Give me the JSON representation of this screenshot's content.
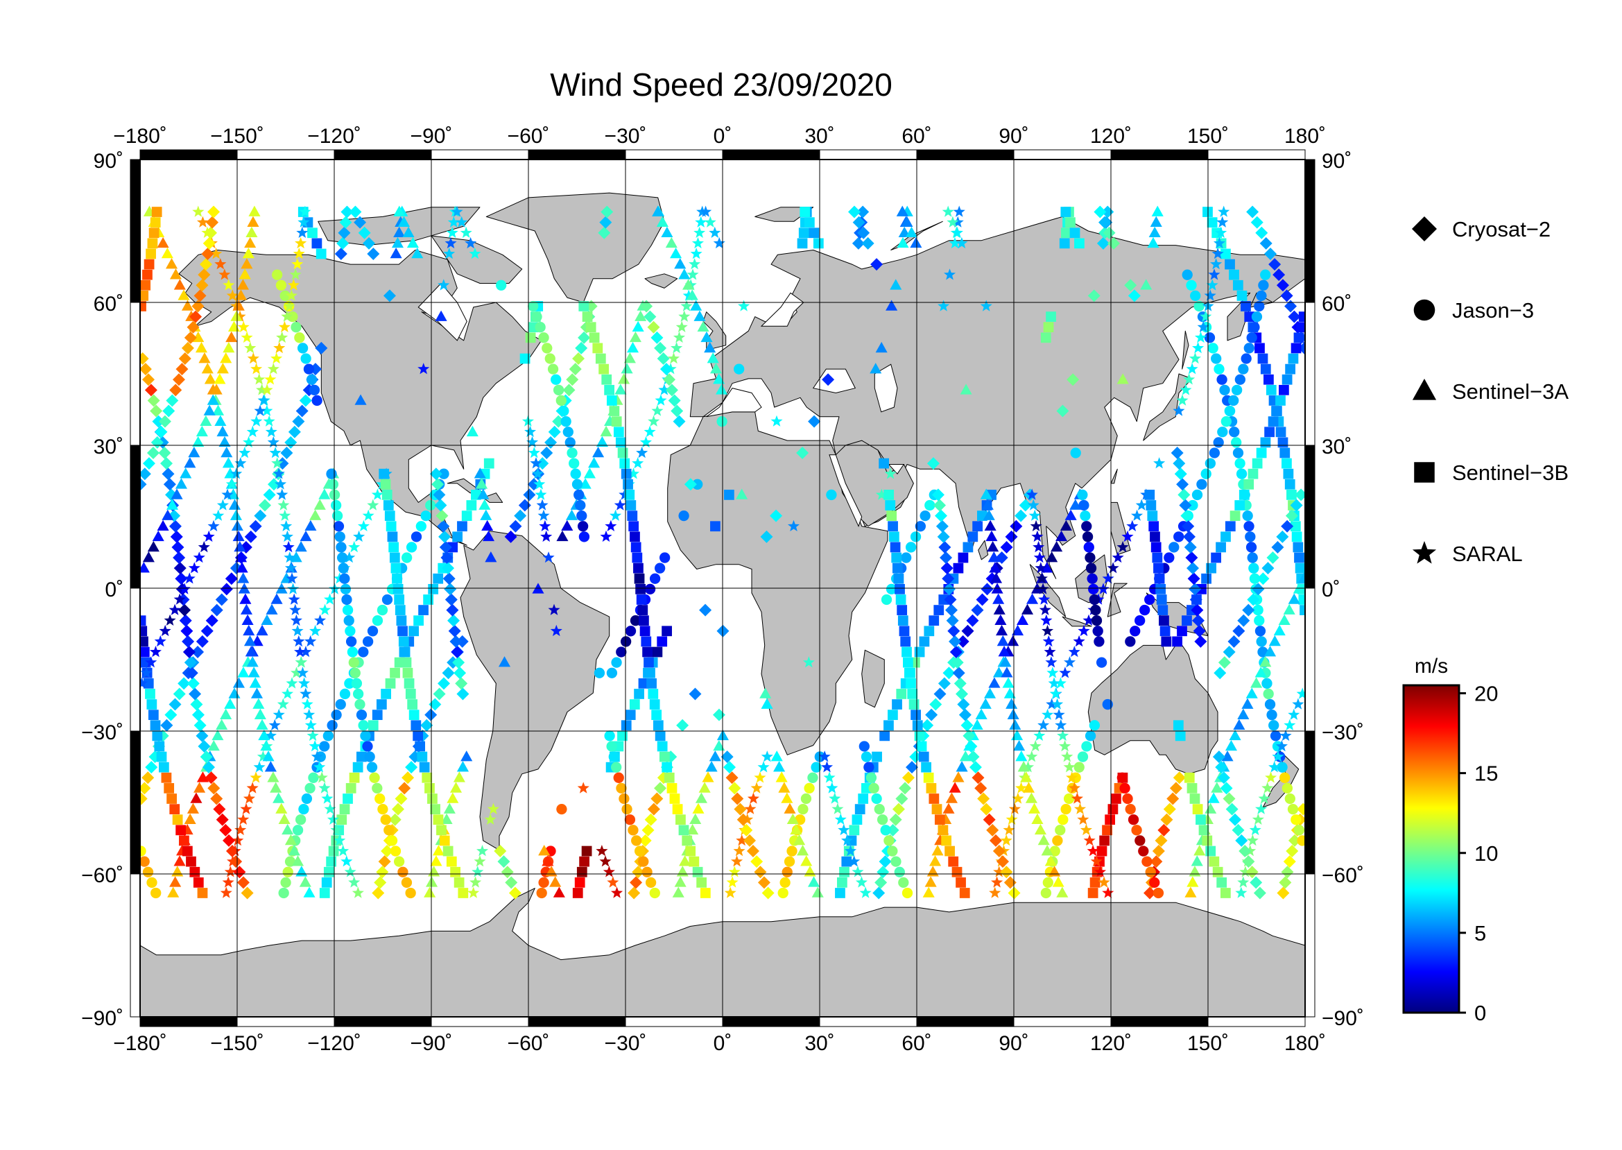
{
  "title": "Wind Speed 23/09/2020",
  "map": {
    "projection": "equirectangular",
    "lon_range": [
      -180,
      180
    ],
    "lat_range": [
      -90,
      90
    ],
    "grid": true,
    "land_color": "#c0c0c0",
    "ocean_color": "#ffffff",
    "lon_ticks": [
      {
        "value": -180,
        "label": "−180˚"
      },
      {
        "value": -150,
        "label": "−150˚"
      },
      {
        "value": -120,
        "label": "−120˚"
      },
      {
        "value": -90,
        "label": "−90˚"
      },
      {
        "value": -60,
        "label": "−60˚"
      },
      {
        "value": -30,
        "label": "−30˚"
      },
      {
        "value": 0,
        "label": "0˚"
      },
      {
        "value": 30,
        "label": "30˚"
      },
      {
        "value": 60,
        "label": "60˚"
      },
      {
        "value": 90,
        "label": "90˚"
      },
      {
        "value": 120,
        "label": "120˚"
      },
      {
        "value": 150,
        "label": "150˚"
      },
      {
        "value": 180,
        "label": "180˚"
      }
    ],
    "lat_ticks": [
      {
        "value": 90,
        "label": "90˚"
      },
      {
        "value": 60,
        "label": "60˚"
      },
      {
        "value": 30,
        "label": "30˚"
      },
      {
        "value": 0,
        "label": "0˚"
      },
      {
        "value": -30,
        "label": "−30˚"
      },
      {
        "value": -60,
        "label": "−60˚"
      },
      {
        "value": -90,
        "label": "−90˚"
      }
    ]
  },
  "legend": [
    {
      "label": "Cryosat−2",
      "symbol": "diamond-icon"
    },
    {
      "label": "Jason−3",
      "symbol": "circle-icon"
    },
    {
      "label": "Sentinel−3A",
      "symbol": "triangle-icon"
    },
    {
      "label": "Sentinel−3B",
      "symbol": "square-icon"
    },
    {
      "label": "SARAL",
      "symbol": "star-icon"
    }
  ],
  "colorbar": {
    "unit": "m/s",
    "min": 0,
    "max": 20.5,
    "ticks": [
      {
        "value": 20,
        "label": "20"
      },
      {
        "value": 15,
        "label": "15"
      },
      {
        "value": 10,
        "label": "10"
      },
      {
        "value": 5,
        "label": "5"
      },
      {
        "value": 0,
        "label": "0"
      }
    ],
    "colormap": [
      "#00007f",
      "#0000ff",
      "#007fff",
      "#00ffff",
      "#7fff7f",
      "#ffff00",
      "#ff7f00",
      "#ff0000",
      "#7f0000"
    ]
  }
}
